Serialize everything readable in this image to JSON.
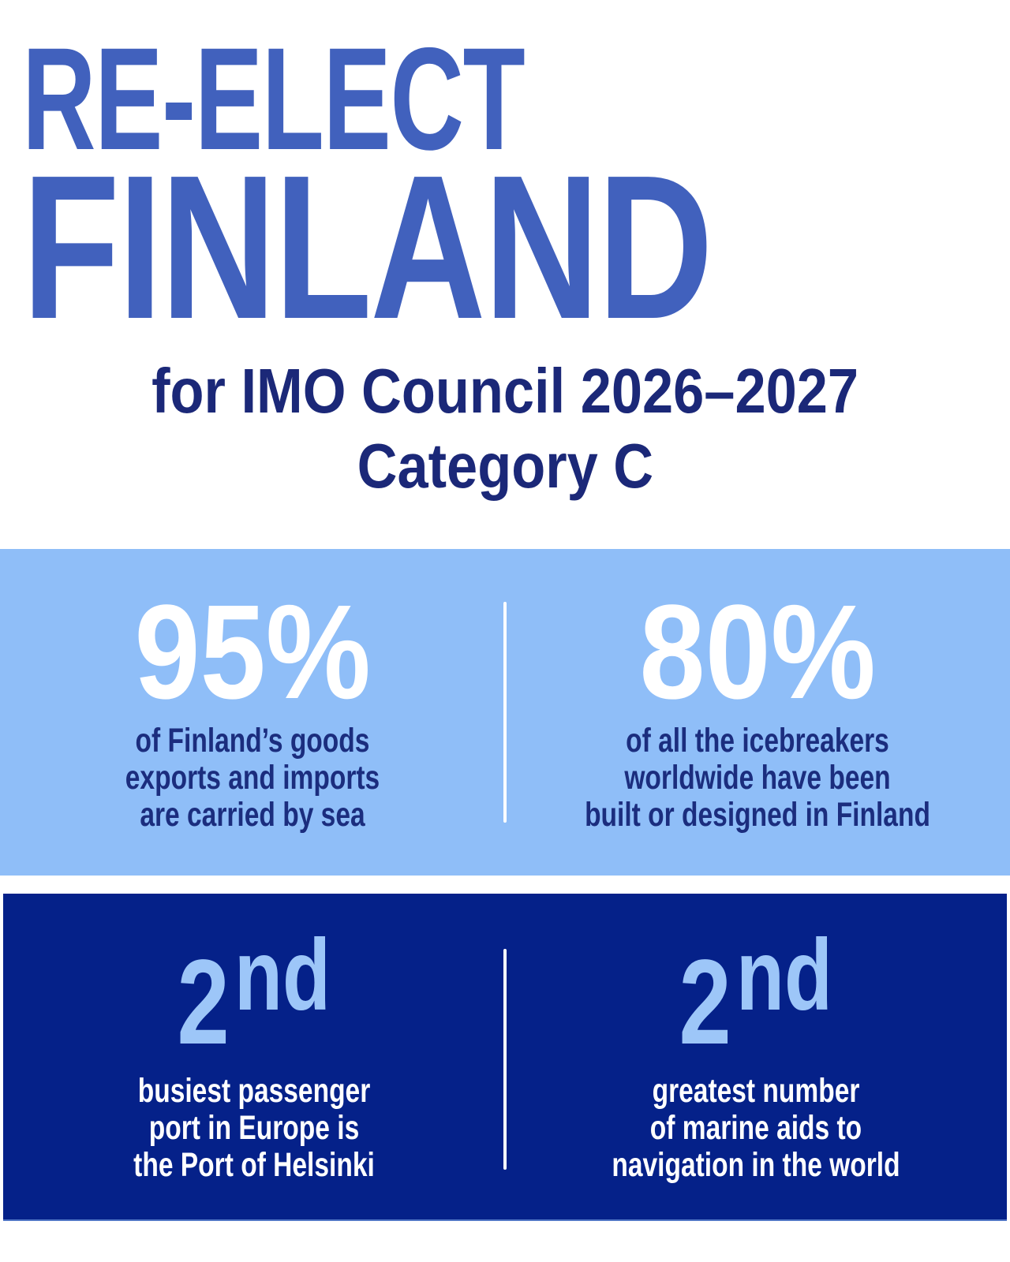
{
  "header": {
    "line1": "RE-ELECT",
    "line2": "FINLAND",
    "subtitle_line1": "for IMO Council 2026–2027",
    "subtitle_line2": "Category C"
  },
  "panels": {
    "light": {
      "stats": [
        {
          "value": "95%",
          "lines": [
            "of Finland’s goods",
            "exports and imports",
            "are carried by sea"
          ]
        },
        {
          "value": "80%",
          "lines": [
            "of all the icebreakers",
            "worldwide have been",
            "built or designed in Finland"
          ]
        }
      ]
    },
    "dark": {
      "stats": [
        {
          "value": "2",
          "ordinal": "nd",
          "lines": [
            "busiest passenger",
            "port in Europe is",
            "the Port of Helsinki"
          ]
        },
        {
          "value": "2",
          "ordinal": "nd",
          "lines": [
            "greatest number",
            "of marine aids to",
            "navigation in the world"
          ]
        }
      ]
    }
  },
  "colors": {
    "header_blue": "#4161bd",
    "subtitle_navy": "#1b2878",
    "light_panel_bg": "#8fbef8",
    "light_panel_text": "#1b2d7e",
    "dark_panel_bg": "#052189",
    "ordinal_blue": "#9dc6f8",
    "white": "#ffffff"
  }
}
